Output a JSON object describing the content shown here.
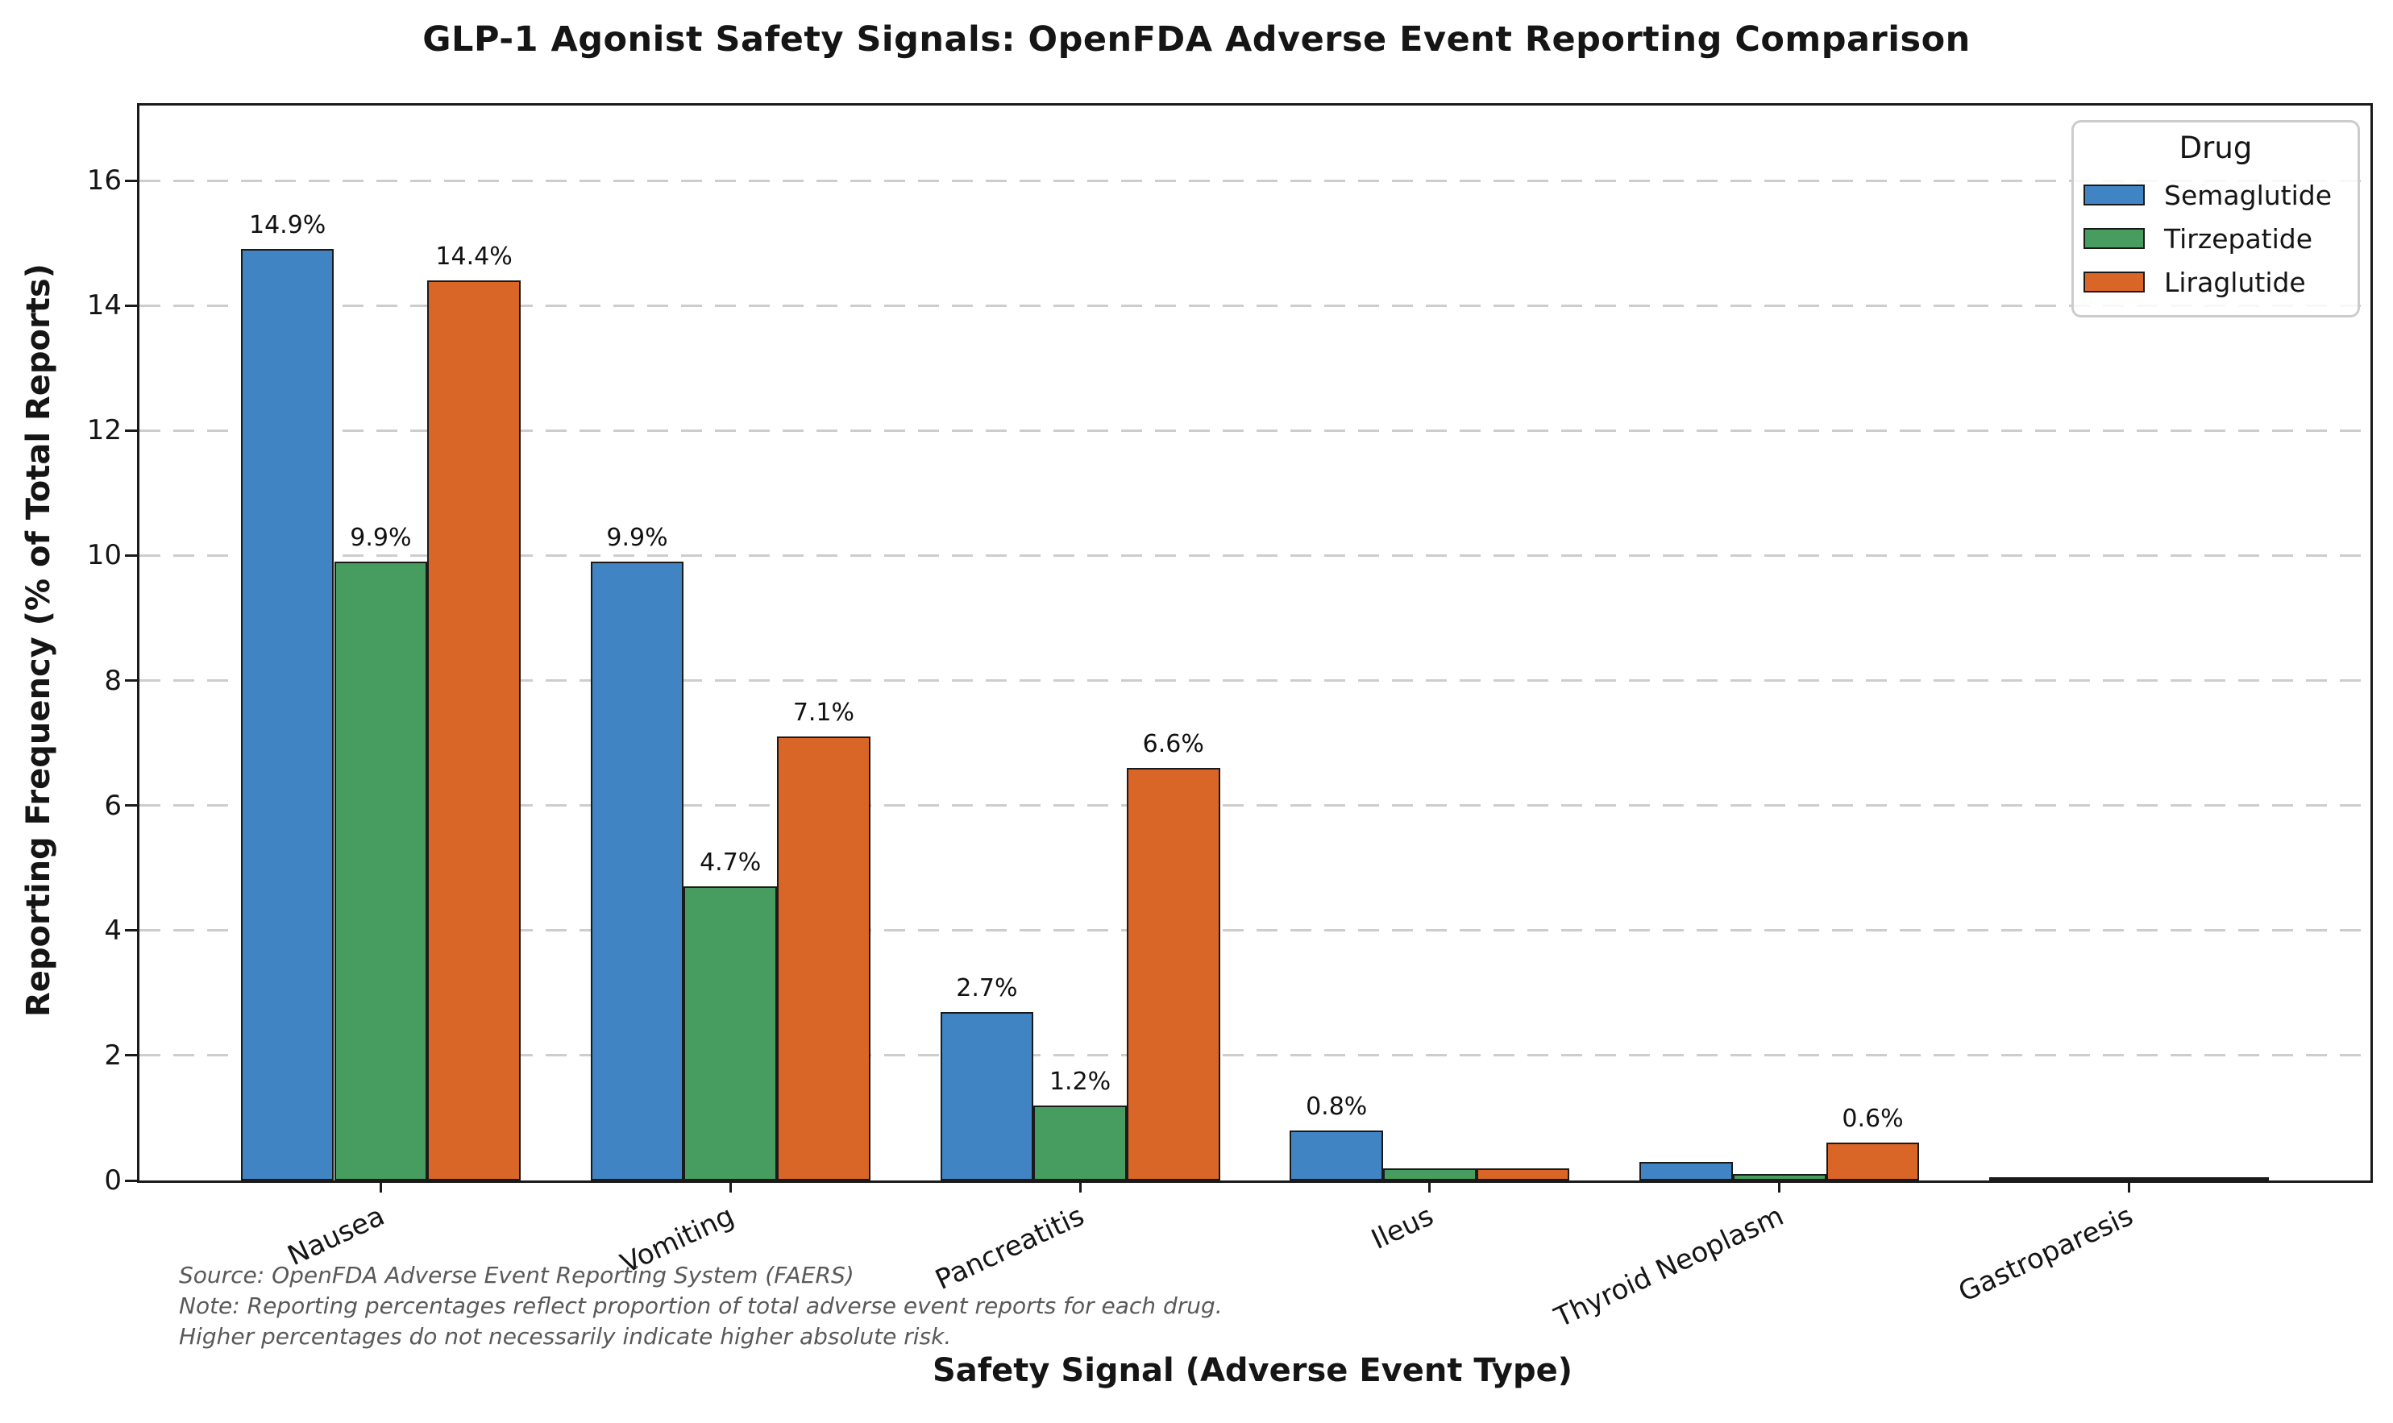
{
  "figure": {
    "title": "GLP-1 Agonist Safety Signals: OpenFDA Adverse Event Reporting Comparison",
    "x_axis_title": "Safety Signal (Adverse Event Type)",
    "y_axis_title": "Reporting Frequency (% of Total Reports)",
    "source_note_lines": [
      "Source: OpenFDA Adverse Event Reporting System (FAERS)",
      "Note: Reporting percentages reflect proportion of total adverse event reports for each drug.",
      "Higher percentages do not necessarily indicate higher absolute risk."
    ]
  },
  "legend": {
    "title": "Drug",
    "entries": [
      {
        "label": "Semaglutide",
        "color": "#4184c4"
      },
      {
        "label": "Tirzepatide",
        "color": "#479c5f"
      },
      {
        "label": "Liraglutide",
        "color": "#d96527"
      }
    ]
  },
  "chart_data": {
    "type": "bar",
    "title": "GLP-1 Agonist Safety Signals: OpenFDA Adverse Event Reporting Comparison",
    "xlabel": "Safety Signal (Adverse Event Type)",
    "ylabel": "Reporting Frequency (% of Total Reports)",
    "categories": [
      "Nausea",
      "Vomiting",
      "Pancreatitis",
      "Ileus",
      "Thyroid Neoplasm",
      "Gastroparesis"
    ],
    "series": [
      {
        "name": "Semaglutide",
        "color": "#4184c4",
        "values": [
          14.9,
          9.9,
          2.7,
          0.8,
          0.3,
          0.02
        ],
        "labels": [
          "14.9%",
          "9.9%",
          "2.7%",
          "0.8%",
          "",
          ""
        ]
      },
      {
        "name": "Tirzepatide",
        "color": "#479c5f",
        "values": [
          9.9,
          4.7,
          1.2,
          0.2,
          0.1,
          0.01
        ],
        "labels": [
          "9.9%",
          "4.7%",
          "1.2%",
          "",
          "",
          ""
        ]
      },
      {
        "name": "Liraglutide",
        "color": "#d96527",
        "values": [
          14.4,
          7.1,
          6.6,
          0.2,
          0.6,
          0.05
        ],
        "labels": [
          "14.4%",
          "7.1%",
          "6.6%",
          "",
          "0.6%",
          ""
        ]
      }
    ],
    "ylim": [
      0,
      17.2
    ],
    "yticks": [
      0,
      2,
      4,
      6,
      8,
      10,
      12,
      14,
      16
    ],
    "grid": "horizontal dashed, light gray",
    "legend_title": "Drug",
    "legend_position": "upper right",
    "bar_edge_color": "#1a1a1a"
  }
}
